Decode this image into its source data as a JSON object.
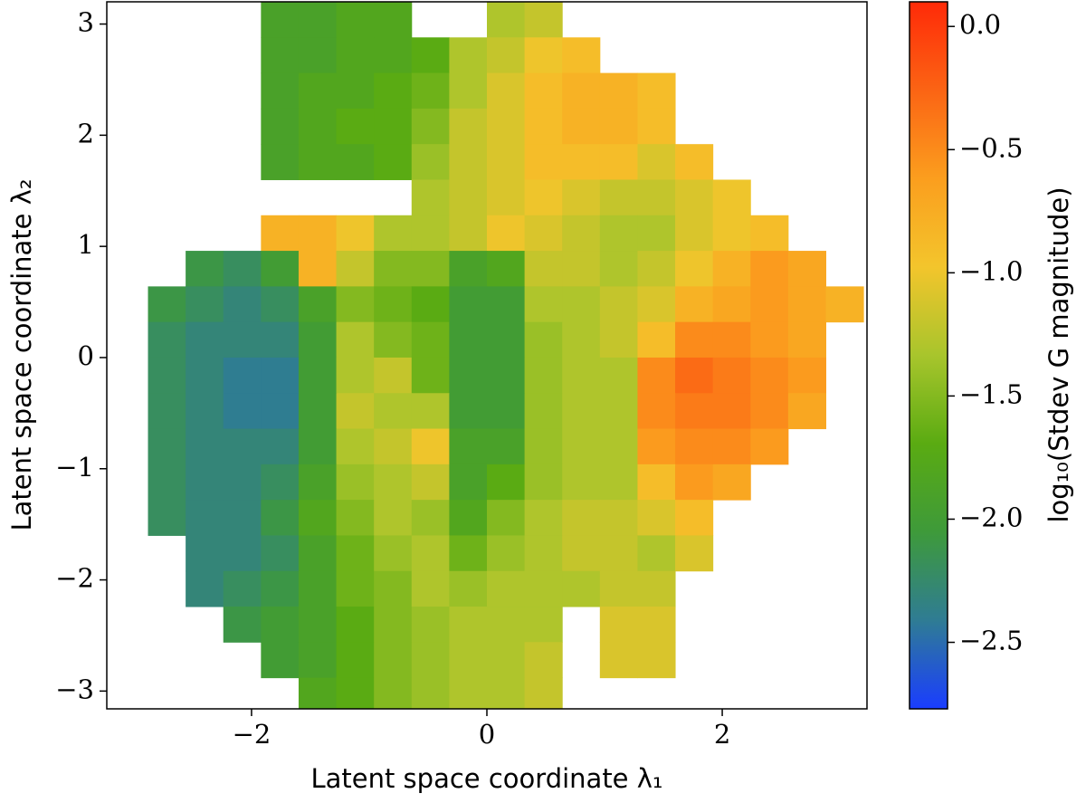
{
  "chart_data": {
    "type": "heatmap",
    "x_label": "Latent space coordinate λ₁",
    "y_label": "Latent space coordinate λ₂",
    "xlim": [
      -3.23,
      3.23
    ],
    "ylim": [
      -3.16,
      3.2
    ],
    "xticks": [
      {
        "value": -2,
        "label": "−2"
      },
      0,
      2
    ],
    "yticks": [
      {
        "value": -3,
        "label": "−3"
      },
      {
        "value": -2,
        "label": "−2"
      },
      {
        "value": -1,
        "label": "−1"
      },
      0,
      1,
      2,
      3
    ],
    "x": [
      -3.04,
      -2.72,
      -2.4,
      -2.08,
      -1.76,
      -1.44,
      -1.12,
      -0.8,
      -0.48,
      -0.16,
      0.16,
      0.48,
      0.8,
      1.12,
      1.44,
      1.76,
      2.08,
      2.4,
      2.72,
      3.04
    ],
    "y": [
      3.04,
      2.72,
      2.4,
      2.08,
      1.76,
      1.44,
      1.12,
      0.8,
      0.48,
      0.16,
      -0.16,
      -0.48,
      -0.8,
      -1.12,
      -1.44,
      -1.76,
      -2.08,
      -2.4,
      -2.72,
      -3.04
    ],
    "z": [
      [
        null,
        null,
        null,
        null,
        -1.9,
        -1.9,
        -1.8,
        -1.8,
        null,
        null,
        -1.3,
        -1.2,
        null,
        null,
        null,
        null,
        null,
        null,
        null,
        null
      ],
      [
        null,
        null,
        null,
        null,
        -1.9,
        -1.9,
        -1.8,
        -1.8,
        -1.7,
        -1.3,
        -1.2,
        -1.0,
        -0.9,
        null,
        null,
        null,
        null,
        null,
        null,
        null
      ],
      [
        null,
        null,
        null,
        null,
        -1.9,
        -1.8,
        -1.8,
        -1.7,
        -1.6,
        -1.3,
        -1.1,
        -0.9,
        -0.8,
        -0.8,
        -0.9,
        null,
        null,
        null,
        null,
        null
      ],
      [
        null,
        null,
        null,
        null,
        -1.9,
        -1.8,
        -1.7,
        -1.7,
        -1.5,
        -1.2,
        -1.1,
        -0.9,
        -0.8,
        -0.8,
        -0.9,
        null,
        null,
        null,
        null,
        null
      ],
      [
        null,
        null,
        null,
        null,
        -1.9,
        -1.8,
        -1.8,
        -1.7,
        -1.4,
        -1.2,
        -1.1,
        -0.9,
        -0.9,
        -0.9,
        -1.1,
        -0.9,
        null,
        null,
        null,
        null
      ],
      [
        null,
        null,
        null,
        null,
        null,
        null,
        null,
        null,
        -1.3,
        -1.2,
        -1.1,
        -1.0,
        -1.1,
        -1.2,
        -1.2,
        -1.1,
        -1.0,
        null,
        null,
        null
      ],
      [
        null,
        null,
        null,
        null,
        -0.8,
        -0.8,
        -1.0,
        -1.3,
        -1.3,
        -1.2,
        -1.0,
        -1.1,
        -1.2,
        -1.3,
        -1.3,
        -1.1,
        -1.0,
        -0.9,
        null,
        null
      ],
      [
        null,
        null,
        -2.1,
        -2.2,
        -2.0,
        -0.8,
        -1.2,
        -1.5,
        -1.5,
        -1.9,
        -1.8,
        -1.2,
        -1.2,
        -1.3,
        -1.2,
        -1.0,
        -0.8,
        -0.6,
        -0.7,
        null
      ],
      [
        null,
        -2.1,
        -2.2,
        -2.3,
        -2.2,
        -1.9,
        -1.5,
        -1.6,
        -1.7,
        -2.0,
        -2.0,
        -1.3,
        -1.3,
        -1.2,
        -1.1,
        -0.8,
        -0.7,
        -0.6,
        -0.7,
        -0.8
      ],
      [
        null,
        -2.2,
        -2.3,
        -2.3,
        -2.3,
        -2.0,
        -1.3,
        -1.5,
        -1.6,
        -2.0,
        -2.0,
        -1.4,
        -1.3,
        -1.2,
        -0.9,
        -0.5,
        -0.5,
        -0.6,
        -0.7,
        null
      ],
      [
        null,
        -2.2,
        -2.3,
        -2.4,
        -2.4,
        -2.0,
        -1.3,
        -1.2,
        -1.6,
        -2.0,
        -2.0,
        -1.4,
        -1.3,
        -1.3,
        -0.5,
        -0.3,
        -0.4,
        -0.5,
        -0.6,
        null
      ],
      [
        null,
        -2.2,
        -2.3,
        -2.4,
        -2.4,
        -2.0,
        -1.2,
        -1.3,
        -1.3,
        -2.0,
        -2.0,
        -1.4,
        -1.3,
        -1.3,
        -0.5,
        -0.4,
        -0.4,
        -0.5,
        -0.7,
        null
      ],
      [
        null,
        -2.2,
        -2.3,
        -2.3,
        -2.3,
        -2.0,
        -1.3,
        -1.2,
        -1.0,
        -1.9,
        -1.9,
        -1.4,
        -1.3,
        -1.3,
        -0.6,
        -0.5,
        -0.5,
        -0.6,
        null,
        null
      ],
      [
        null,
        -2.2,
        -2.3,
        -2.3,
        -2.2,
        -1.9,
        -1.4,
        -1.3,
        -1.2,
        -1.9,
        -1.7,
        -1.4,
        -1.3,
        -1.3,
        -0.9,
        -0.6,
        -0.7,
        null,
        null,
        null
      ],
      [
        null,
        -2.2,
        -2.3,
        -2.3,
        -2.1,
        -1.8,
        -1.5,
        -1.3,
        -1.4,
        -1.8,
        -1.5,
        -1.3,
        -1.2,
        -1.2,
        -1.1,
        -0.9,
        null,
        null,
        null,
        null
      ],
      [
        null,
        null,
        -2.3,
        -2.3,
        -2.2,
        -1.9,
        -1.6,
        -1.4,
        -1.3,
        -1.6,
        -1.4,
        -1.3,
        -1.2,
        -1.2,
        -1.3,
        -1.1,
        null,
        null,
        null,
        null
      ],
      [
        null,
        null,
        -2.3,
        -2.2,
        -2.1,
        -1.9,
        -1.6,
        -1.5,
        -1.3,
        -1.4,
        -1.3,
        -1.3,
        -1.3,
        -1.2,
        -1.2,
        null,
        null,
        null,
        null,
        null
      ],
      [
        null,
        null,
        null,
        -2.1,
        -2.0,
        -1.9,
        -1.7,
        -1.5,
        -1.4,
        -1.3,
        -1.3,
        -1.3,
        null,
        -1.1,
        -1.1,
        null,
        null,
        null,
        null,
        null
      ],
      [
        null,
        null,
        null,
        null,
        -2.0,
        -1.9,
        -1.7,
        -1.5,
        -1.4,
        -1.3,
        -1.3,
        -1.2,
        null,
        -1.1,
        -1.1,
        null,
        null,
        null,
        null,
        null
      ],
      [
        null,
        null,
        null,
        null,
        null,
        -1.8,
        -1.7,
        -1.5,
        -1.4,
        -1.3,
        -1.3,
        -1.2,
        null,
        null,
        null,
        null,
        null,
        null,
        null,
        null
      ]
    ],
    "colorbar": {
      "label": "log₁₀(Stdev G magnitude)",
      "lim": [
        -2.77,
        0.1
      ],
      "ticks": [
        {
          "value": -2.5,
          "label": "−2.5"
        },
        {
          "value": -2.0,
          "label": "−2.0"
        },
        {
          "value": -1.5,
          "label": "−1.5"
        },
        {
          "value": -1.0,
          "label": "−1.0"
        },
        {
          "value": -0.5,
          "label": "−0.5"
        },
        {
          "value": 0.0,
          "label": "0.0"
        }
      ],
      "colormap": [
        "#1a3dff",
        "#2f7c94",
        "#3e9a3a",
        "#5aab12",
        "#a8c52c",
        "#f3c52c",
        "#fb9e1e",
        "#fb6414",
        "#ff2a08"
      ]
    }
  }
}
